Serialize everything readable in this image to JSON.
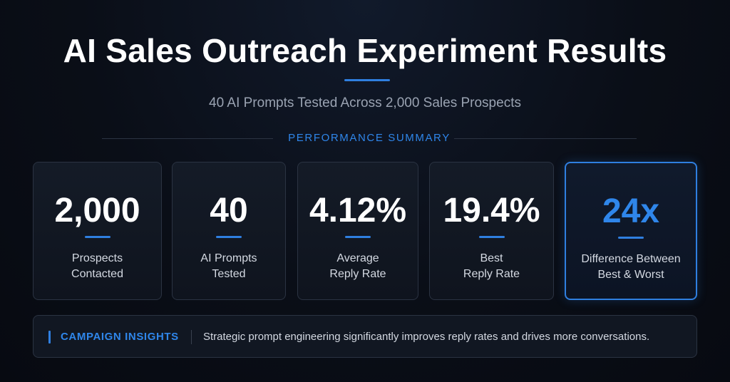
{
  "header": {
    "title": "AI Sales Outreach Experiment Results",
    "subtitle": "40 AI Prompts Tested Across 2,000 Sales Prospects"
  },
  "section": {
    "label": "PERFORMANCE SUMMARY"
  },
  "accent_color": "#2f7fe0",
  "cards": [
    {
      "value": "2,000",
      "label_line1": "Prospects",
      "label_line2": "Contacted"
    },
    {
      "value": "40",
      "label_line1": "AI Prompts",
      "label_line2": "Tested"
    },
    {
      "value": "4.12%",
      "label_line1": "Average",
      "label_line2": "Reply Rate"
    },
    {
      "value": "19.4%",
      "label_line1": "Best",
      "label_line2": "Reply Rate"
    },
    {
      "value": "24x",
      "label_line1": "Difference Between",
      "label_line2": "Best & Worst",
      "highlighted": true
    }
  ],
  "insights": {
    "title": "CAMPAIGN INSIGHTS",
    "text": "Strategic prompt engineering significantly improves reply rates and drives more conversations."
  }
}
